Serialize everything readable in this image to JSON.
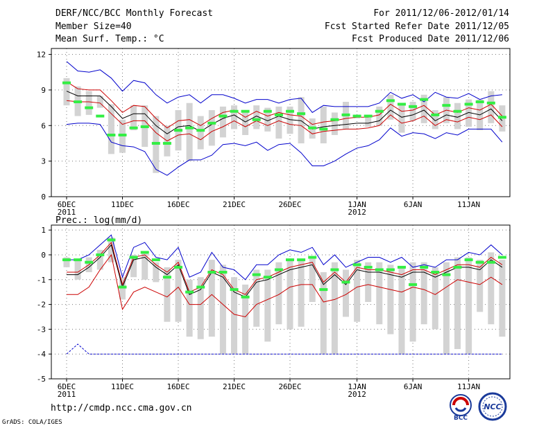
{
  "header": {
    "title": "DERF/NCC/BCC Monthly Forecast",
    "member_size": "Member Size=40",
    "variable": "Mean Surf. Temp.: °C",
    "period": "For 2011/12/06-2012/01/14",
    "fcst_started": "Fcst Started Refer Date 2011/12/05",
    "fcst_produced": "Fcst Produced Date 2011/12/06"
  },
  "footer": {
    "url": "http://cmdp.ncc.cma.gov.cn",
    "grads": "GrADS: COLA/IGES",
    "logos": [
      "BCC",
      "NCC"
    ]
  },
  "colors": {
    "ensemble_mean": "#000000",
    "spread": "#cc0000",
    "extremes": "#0000cc",
    "observed": "#33ee44",
    "boxes": "#d3d3d3"
  },
  "chart_data": [
    {
      "type": "line",
      "name": "temperature",
      "ylabel": "Mean Surf. Temp.: °C",
      "ylim": [
        0,
        12.5
      ],
      "yticks": [
        0,
        3,
        6,
        9,
        12
      ],
      "x": [
        "2011-12-06",
        "2011-12-07",
        "2011-12-08",
        "2011-12-09",
        "2011-12-10",
        "2011-12-11",
        "2011-12-12",
        "2011-12-13",
        "2011-12-14",
        "2011-12-15",
        "2011-12-16",
        "2011-12-17",
        "2011-12-18",
        "2011-12-19",
        "2011-12-20",
        "2011-12-21",
        "2011-12-22",
        "2011-12-23",
        "2011-12-24",
        "2011-12-25",
        "2011-12-26",
        "2011-12-27",
        "2011-12-28",
        "2011-12-29",
        "2011-12-30",
        "2011-12-31",
        "2012-01-01",
        "2012-01-02",
        "2012-01-03",
        "2012-01-04",
        "2012-01-05",
        "2012-01-06",
        "2012-01-07",
        "2012-01-08",
        "2012-01-09",
        "2012-01-10",
        "2012-01-11",
        "2012-01-12",
        "2012-01-13",
        "2012-01-14"
      ],
      "xticks": [
        {
          "index": 0,
          "label": "6DEC",
          "sub": "2011"
        },
        {
          "index": 5,
          "label": "11DEC",
          "sub": ""
        },
        {
          "index": 10,
          "label": "16DEC",
          "sub": ""
        },
        {
          "index": 15,
          "label": "21DEC",
          "sub": ""
        },
        {
          "index": 20,
          "label": "26DEC",
          "sub": ""
        },
        {
          "index": 26,
          "label": "1JAN",
          "sub": "2012"
        },
        {
          "index": 31,
          "label": "6JAN",
          "sub": ""
        },
        {
          "index": 36,
          "label": "11JAN",
          "sub": ""
        }
      ],
      "series": [
        {
          "name": "max",
          "color": "#0000cc",
          "values": [
            11.4,
            10.6,
            10.5,
            10.7,
            10.0,
            8.9,
            9.8,
            9.6,
            8.6,
            7.9,
            8.4,
            8.6,
            7.9,
            8.6,
            8.6,
            8.3,
            7.9,
            8.2,
            8.2,
            7.9,
            8.2,
            8.3,
            7.1,
            7.7,
            7.6,
            7.6,
            7.6,
            7.6,
            7.9,
            8.8,
            8.3,
            8.6,
            8.0,
            8.8,
            8.4,
            8.3,
            8.7,
            8.2,
            8.5,
            8.6
          ]
        },
        {
          "name": "upper",
          "color": "#cc0000",
          "values": [
            9.7,
            9.1,
            9.0,
            9.0,
            8.1,
            7.1,
            7.7,
            7.6,
            6.6,
            5.8,
            6.4,
            6.5,
            6.0,
            6.6,
            7.1,
            7.3,
            6.7,
            7.2,
            6.8,
            7.1,
            6.9,
            6.8,
            6.1,
            6.3,
            6.4,
            6.6,
            6.7,
            6.7,
            6.9,
            7.8,
            7.2,
            7.3,
            7.7,
            6.9,
            7.3,
            7.1,
            7.5,
            7.3,
            7.8,
            6.8
          ]
        },
        {
          "name": "mean",
          "color": "#000000",
          "values": [
            8.9,
            8.5,
            8.5,
            8.5,
            7.6,
            6.6,
            7.0,
            7.0,
            6.0,
            5.3,
            5.9,
            6.0,
            5.5,
            6.1,
            6.6,
            6.9,
            6.3,
            6.8,
            6.4,
            6.8,
            6.5,
            6.4,
            5.7,
            5.9,
            6.0,
            6.1,
            6.2,
            6.2,
            6.4,
            7.3,
            6.7,
            6.9,
            7.3,
            6.4,
            6.9,
            6.7,
            7.1,
            6.9,
            7.4,
            6.4
          ]
        },
        {
          "name": "lower",
          "color": "#cc0000",
          "values": [
            8.1,
            8.0,
            8.0,
            7.9,
            7.0,
            6.1,
            6.4,
            6.4,
            5.4,
            4.7,
            5.2,
            5.3,
            4.8,
            5.5,
            5.9,
            6.4,
            5.9,
            6.4,
            6.0,
            6.4,
            6.1,
            6.0,
            5.3,
            5.5,
            5.6,
            5.7,
            5.7,
            5.8,
            6.0,
            6.9,
            6.2,
            6.4,
            6.8,
            6.0,
            6.5,
            6.3,
            6.7,
            6.5,
            6.9,
            5.9
          ]
        },
        {
          "name": "min",
          "color": "#0000cc",
          "values": [
            6.1,
            6.2,
            6.2,
            6.1,
            4.6,
            4.3,
            4.2,
            3.8,
            2.3,
            1.8,
            2.5,
            3.1,
            3.1,
            3.5,
            4.4,
            4.5,
            4.3,
            4.6,
            3.9,
            4.4,
            4.5,
            3.7,
            2.6,
            2.6,
            3.0,
            3.6,
            4.1,
            4.3,
            4.8,
            5.8,
            5.1,
            5.4,
            5.3,
            4.9,
            5.4,
            5.2,
            5.7,
            5.7,
            5.7,
            4.6
          ]
        }
      ],
      "boxes": {
        "top": [
          10.0,
          9.3,
          8.9,
          8.5,
          7.8,
          6.5,
          7.7,
          7.7,
          6.8,
          6.0,
          7.3,
          7.9,
          6.8,
          7.3,
          7.6,
          7.7,
          7.1,
          7.7,
          7.5,
          7.6,
          7.6,
          8.4,
          6.6,
          7.6,
          7.1,
          8.0,
          6.9,
          6.8,
          7.6,
          8.6,
          7.8,
          8.0,
          8.6,
          7.3,
          8.4,
          7.9,
          8.2,
          8.2,
          8.9,
          7.7
        ],
        "bottom": [
          7.7,
          6.8,
          6.9,
          7.5,
          3.6,
          3.7,
          5.6,
          4.2,
          2.0,
          3.4,
          3.9,
          3.0,
          4.0,
          4.3,
          5.0,
          5.7,
          5.2,
          5.7,
          5.5,
          4.9,
          5.3,
          4.5,
          4.9,
          4.5,
          5.2,
          5.7,
          6.6,
          5.9,
          6.0,
          6.5,
          5.4,
          6.4,
          6.2,
          5.7,
          6.2,
          5.7,
          5.9,
          5.6,
          6.2,
          5.5
        ]
      },
      "observed": [
        9.6,
        8.0,
        7.5,
        6.8,
        5.2,
        5.2,
        5.8,
        5.9,
        4.5,
        4.5,
        5.6,
        5.8,
        5.6,
        6.2,
        6.8,
        7.2,
        7.2,
        6.5,
        7.2,
        6.9,
        7.2,
        7.0,
        5.8,
        5.7,
        6.5,
        6.9,
        6.8,
        6.8,
        7.2,
        8.1,
        7.8,
        7.6,
        8.2,
        6.9,
        7.7,
        7.2,
        7.8,
        8.0,
        7.9,
        6.7
      ]
    },
    {
      "type": "line",
      "name": "precipitation",
      "ylabel": "Prec.: log(mm/d)",
      "ylim": [
        -5,
        1.2
      ],
      "yticks": [
        -5,
        -4,
        -3,
        -2,
        -1,
        0,
        1
      ],
      "x": [
        "2011-12-06",
        "2011-12-07",
        "2011-12-08",
        "2011-12-09",
        "2011-12-10",
        "2011-12-11",
        "2011-12-12",
        "2011-12-13",
        "2011-12-14",
        "2011-12-15",
        "2011-12-16",
        "2011-12-17",
        "2011-12-18",
        "2011-12-19",
        "2011-12-20",
        "2011-12-21",
        "2011-12-22",
        "2011-12-23",
        "2011-12-24",
        "2011-12-25",
        "2011-12-26",
        "2011-12-27",
        "2011-12-28",
        "2011-12-29",
        "2011-12-30",
        "2011-12-31",
        "2012-01-01",
        "2012-01-02",
        "2012-01-03",
        "2012-01-04",
        "2012-01-05",
        "2012-01-06",
        "2012-01-07",
        "2012-01-08",
        "2012-01-09",
        "2012-01-10",
        "2012-01-11",
        "2012-01-12",
        "2012-01-13",
        "2012-01-14"
      ],
      "xticks": [
        {
          "index": 0,
          "label": "6DEC",
          "sub": "2011"
        },
        {
          "index": 5,
          "label": "11DEC",
          "sub": ""
        },
        {
          "index": 10,
          "label": "16DEC",
          "sub": ""
        },
        {
          "index": 15,
          "label": "21DEC",
          "sub": ""
        },
        {
          "index": 20,
          "label": "26DEC",
          "sub": ""
        },
        {
          "index": 26,
          "label": "1JAN",
          "sub": "2012"
        },
        {
          "index": 31,
          "label": "6JAN",
          "sub": ""
        },
        {
          "index": 36,
          "label": "11JAN",
          "sub": ""
        }
      ],
      "series": [
        {
          "name": "max",
          "color": "#0000cc",
          "values": [
            -0.2,
            -0.2,
            0.0,
            0.4,
            0.8,
            -0.9,
            0.3,
            0.5,
            -0.1,
            -0.2,
            0.3,
            -0.9,
            -0.7,
            0.1,
            -0.5,
            -0.6,
            -1.0,
            -0.4,
            -0.4,
            0.0,
            0.2,
            0.1,
            0.3,
            -0.4,
            0.0,
            -0.5,
            -0.3,
            -0.1,
            -0.1,
            -0.3,
            -0.1,
            -0.5,
            -0.4,
            -0.5,
            -0.2,
            -0.2,
            0.1,
            0.0,
            0.4,
            0.0
          ]
        },
        {
          "name": "upper",
          "color": "#cc0000",
          "values": [
            -0.7,
            -0.7,
            -0.4,
            0.0,
            0.5,
            -1.2,
            -0.1,
            0.0,
            -0.4,
            -0.7,
            -0.3,
            -1.5,
            -1.3,
            -0.6,
            -0.8,
            -1.4,
            -1.6,
            -1.0,
            -0.9,
            -0.7,
            -0.5,
            -0.4,
            -0.3,
            -1.1,
            -0.7,
            -1.1,
            -0.5,
            -0.6,
            -0.6,
            -0.7,
            -0.8,
            -0.6,
            -0.6,
            -0.8,
            -0.6,
            -0.4,
            -0.4,
            -0.5,
            -0.1,
            -0.4
          ]
        },
        {
          "name": "mean",
          "color": "#000000",
          "values": [
            -0.8,
            -0.8,
            -0.5,
            -0.1,
            0.4,
            -1.3,
            -0.2,
            -0.1,
            -0.5,
            -0.8,
            -0.4,
            -1.6,
            -1.4,
            -0.7,
            -0.9,
            -1.5,
            -1.7,
            -1.1,
            -1.0,
            -0.8,
            -0.6,
            -0.5,
            -0.4,
            -1.2,
            -0.8,
            -1.2,
            -0.6,
            -0.7,
            -0.7,
            -0.8,
            -0.9,
            -0.7,
            -0.7,
            -0.9,
            -0.7,
            -0.5,
            -0.5,
            -0.6,
            -0.2,
            -0.5
          ]
        },
        {
          "name": "lower",
          "color": "#cc0000",
          "values": [
            -1.6,
            -1.6,
            -1.3,
            -0.6,
            0.0,
            -2.2,
            -1.5,
            -1.3,
            -1.5,
            -1.7,
            -1.3,
            -2.0,
            -2.0,
            -1.6,
            -2.0,
            -2.4,
            -2.5,
            -2.0,
            -1.8,
            -1.6,
            -1.3,
            -1.2,
            -1.2,
            -1.9,
            -1.8,
            -1.6,
            -1.3,
            -1.2,
            -1.3,
            -1.4,
            -1.5,
            -1.3,
            -1.4,
            -1.6,
            -1.3,
            -1.0,
            -1.1,
            -1.2,
            -0.9,
            -1.2
          ]
        },
        {
          "name": "min",
          "color": "#0000cc",
          "values": [
            -4.0,
            -3.6,
            -4.0,
            -4.0,
            -4.0,
            -4.0,
            -4.0,
            -4.0,
            -4.0,
            -4.0,
            -4.0,
            -4.0,
            -4.0,
            -4.0,
            -4.0,
            -4.0,
            -4.0,
            -4.0,
            -4.0,
            -4.0,
            -4.0,
            -4.0,
            -4.0,
            -4.0,
            -4.0,
            -4.0,
            -4.0,
            -4.0,
            -4.0,
            -4.0,
            -4.0,
            -4.0,
            -4.0,
            -4.0,
            -4.0,
            -4.0,
            -4.0,
            -4.0,
            -4.0,
            -4.0
          ]
        }
      ],
      "boxes": {
        "top": [
          -0.1,
          -0.2,
          -0.1,
          0.2,
          0.7,
          -0.9,
          0.0,
          0.1,
          -0.3,
          -0.5,
          -0.2,
          -1.0,
          -0.9,
          -0.2,
          -0.4,
          -0.9,
          -1.2,
          -0.6,
          -0.6,
          -0.3,
          -0.2,
          -0.2,
          -0.1,
          -0.7,
          -0.3,
          -0.6,
          -0.2,
          -0.3,
          -0.3,
          -0.4,
          -0.5,
          -0.3,
          -0.3,
          -0.5,
          -0.3,
          -0.1,
          -0.1,
          -0.2,
          0.1,
          -0.2
        ],
        "bottom": [
          -0.5,
          -1.0,
          -0.7,
          -0.6,
          -0.3,
          -1.8,
          -0.9,
          -1.0,
          -1.1,
          -2.7,
          -2.7,
          -3.3,
          -3.4,
          -3.3,
          -4.0,
          -4.0,
          -4.0,
          -2.9,
          -3.5,
          -2.8,
          -3.0,
          -2.9,
          -1.9,
          -4.0,
          -4.0,
          -2.5,
          -2.7,
          -1.9,
          -2.8,
          -3.2,
          -4.0,
          -3.5,
          -2.8,
          -3.0,
          -4.0,
          -3.8,
          -4.0,
          -2.3,
          -2.8,
          -3.3
        ]
      },
      "observed": [
        -0.2,
        -0.2,
        -0.3,
        0.0,
        0.6,
        -1.3,
        -0.1,
        0.1,
        -0.2,
        -0.9,
        -0.5,
        -1.5,
        -1.3,
        -0.7,
        -0.7,
        -1.4,
        -1.7,
        -0.8,
        -0.9,
        -0.6,
        -0.2,
        -0.2,
        -0.1,
        -1.4,
        -0.6,
        -1.1,
        -0.4,
        -0.5,
        -0.6,
        -0.6,
        -0.5,
        -1.2,
        -0.5,
        -0.7,
        -0.8,
        -0.5,
        -0.2,
        -0.3,
        -0.3,
        -0.1
      ]
    }
  ]
}
